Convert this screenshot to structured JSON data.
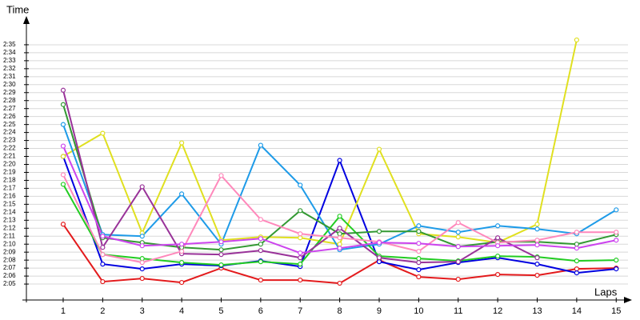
{
  "chart_data": {
    "type": "line",
    "y_label": "Time",
    "x_label": "Laps",
    "x": [
      1,
      2,
      3,
      4,
      5,
      6,
      7,
      8,
      9,
      10,
      11,
      12,
      13,
      14,
      15
    ],
    "xlim": [
      0,
      15.4
    ],
    "xticks": [
      1,
      2,
      3,
      4,
      5,
      6,
      7,
      8,
      9,
      10,
      11,
      12,
      13,
      14,
      15
    ],
    "ylim": [
      123,
      157
    ],
    "yticks": [
      {
        "value": 125,
        "label": "2:05"
      },
      {
        "value": 126,
        "label": "2:06"
      },
      {
        "value": 127,
        "label": "2:07"
      },
      {
        "value": 128,
        "label": "2:08"
      },
      {
        "value": 129,
        "label": "2:09"
      },
      {
        "value": 130,
        "label": "2:10"
      },
      {
        "value": 131,
        "label": "2:11"
      },
      {
        "value": 132,
        "label": "2:12"
      },
      {
        "value": 133,
        "label": "2:13"
      },
      {
        "value": 134,
        "label": "2:14"
      },
      {
        "value": 135,
        "label": "2:15"
      },
      {
        "value": 136,
        "label": "2:16"
      },
      {
        "value": 137,
        "label": "2:17"
      },
      {
        "value": 138,
        "label": "2:18"
      },
      {
        "value": 139,
        "label": "2:19"
      },
      {
        "value": 140,
        "label": "2:20"
      },
      {
        "value": 141,
        "label": "2:21"
      },
      {
        "value": 142,
        "label": "2:22"
      },
      {
        "value": 143,
        "label": "2:23"
      },
      {
        "value": 144,
        "label": "2:24"
      },
      {
        "value": 145,
        "label": "2:25"
      },
      {
        "value": 146,
        "label": "2:26"
      },
      {
        "value": 147,
        "label": "2:27"
      },
      {
        "value": 148,
        "label": "2:28"
      },
      {
        "value": 149,
        "label": "2:29"
      },
      {
        "value": 150,
        "label": "2:30"
      },
      {
        "value": 151,
        "label": "2:31"
      },
      {
        "value": 152,
        "label": "2:32"
      },
      {
        "value": 153,
        "label": "2:33"
      },
      {
        "value": 154,
        "label": "2:34"
      },
      {
        "value": 155,
        "label": "2:35"
      }
    ],
    "grid": true,
    "series": [
      {
        "color": "#e31a1c",
        "values": [
          132.5,
          125.3,
          125.7,
          125.2,
          127,
          125.5,
          125.5,
          125.1,
          128,
          125.9,
          125.6,
          126.2,
          126.1,
          126.9,
          127
        ]
      },
      {
        "color": "#0000e0",
        "values": [
          141,
          127.5,
          126.9,
          127.5,
          127.3,
          127.9,
          127.2,
          140.5,
          127.8,
          126.8,
          127.7,
          128.3,
          127.5,
          126.4,
          126.9
        ]
      },
      {
        "color": "#e0e020",
        "values": [
          141,
          143.9,
          131.4,
          142.7,
          130.5,
          130.9,
          130.8,
          130,
          141.9,
          131.3,
          130.9,
          130.2,
          132.5,
          155.6,
          null
        ]
      },
      {
        "color": "#1e9be8",
        "values": [
          145,
          131.2,
          131,
          136.3,
          130,
          142.4,
          137.4,
          129.3,
          130,
          132.3,
          131.5,
          132.3,
          131.9,
          131.3,
          134.3
        ]
      },
      {
        "color": "#22cc22",
        "values": [
          137.5,
          128.7,
          128.2,
          127.7,
          127.4,
          127.8,
          127.5,
          133.5,
          128.5,
          128.2,
          127.9,
          128.5,
          128.4,
          127.9,
          128
        ]
      },
      {
        "color": "#339933",
        "values": [
          147.5,
          130.8,
          130.2,
          129.6,
          129.3,
          130,
          134.2,
          131.3,
          131.6,
          131.6,
          129.7,
          130.3,
          130.3,
          130,
          131.2
        ]
      },
      {
        "color": "#993399",
        "values": [
          149.3,
          129.6,
          137.2,
          128.8,
          128.7,
          129.2,
          128.3,
          132,
          128.3,
          127.7,
          127.8,
          130.8,
          128.3,
          null,
          null
        ]
      },
      {
        "color": "#ff88bb",
        "values": [
          138.7,
          128.7,
          127.7,
          129.1,
          138.6,
          133.1,
          131.3,
          130.8,
          130.3,
          129.1,
          132.7,
          130.2,
          130.5,
          131.5,
          131.5
        ]
      },
      {
        "color": "#cc44ee",
        "values": [
          142.3,
          131,
          129.8,
          130,
          130.3,
          130.7,
          128.9,
          129.5,
          130.2,
          130.1,
          129.7,
          129.8,
          129.9,
          129.5,
          130.5
        ]
      }
    ]
  }
}
